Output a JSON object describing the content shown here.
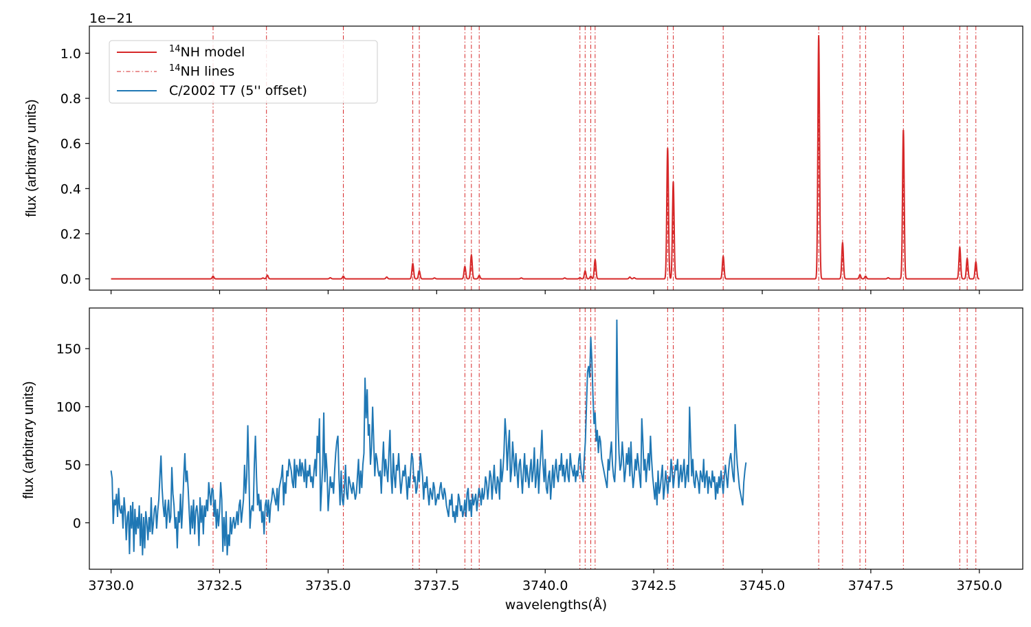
{
  "colors": {
    "model": "#d62728",
    "lines": "#d62728",
    "observed": "#1f77b4",
    "axes": "#000000"
  },
  "chart_data": [
    {
      "type": "line",
      "title": "",
      "xlabel": "",
      "ylabel": "flux (arbitrary units)",
      "offset_text": "1e−21",
      "xlim": [
        3729.5,
        3751.0
      ],
      "ylim": [
        -0.05,
        1.12
      ],
      "xticks": [
        3730.0,
        3732.5,
        3735.0,
        3737.5,
        3740.0,
        3742.5,
        3745.0,
        3747.5,
        3750.0
      ],
      "show_xtick_labels": false,
      "yticks": [
        0.0,
        0.2,
        0.4,
        0.6,
        0.8,
        1.0
      ],
      "ytick_labels": [
        "0.0",
        "0.2",
        "0.4",
        "0.6",
        "0.8",
        "1.0"
      ],
      "legend": {
        "placement": "upper-left",
        "entries": [
          {
            "sup": "14",
            "text": "NH model",
            "style": "solid",
            "color": "#d62728"
          },
          {
            "sup": "14",
            "text": "NH lines",
            "style": "dashdot",
            "color": "#d62728"
          },
          {
            "sup": "",
            "text": "C/2002 T7 (5'' offset)",
            "style": "solid",
            "color": "#1f77b4"
          }
        ]
      },
      "model_peaks": [
        {
          "x": 3732.35,
          "y": 0.012
        },
        {
          "x": 3733.5,
          "y": 0.004
        },
        {
          "x": 3733.6,
          "y": 0.016
        },
        {
          "x": 3735.05,
          "y": 0.005
        },
        {
          "x": 3735.35,
          "y": 0.012
        },
        {
          "x": 3736.35,
          "y": 0.008
        },
        {
          "x": 3736.95,
          "y": 0.068
        },
        {
          "x": 3737.1,
          "y": 0.035
        },
        {
          "x": 3737.45,
          "y": 0.004
        },
        {
          "x": 3738.15,
          "y": 0.055
        },
        {
          "x": 3738.3,
          "y": 0.105
        },
        {
          "x": 3738.48,
          "y": 0.015
        },
        {
          "x": 3739.45,
          "y": 0.004
        },
        {
          "x": 3740.45,
          "y": 0.004
        },
        {
          "x": 3740.8,
          "y": 0.005
        },
        {
          "x": 3740.92,
          "y": 0.035
        },
        {
          "x": 3741.05,
          "y": 0.012
        },
        {
          "x": 3741.15,
          "y": 0.085
        },
        {
          "x": 3741.95,
          "y": 0.008
        },
        {
          "x": 3742.05,
          "y": 0.005
        },
        {
          "x": 3742.82,
          "y": 0.58
        },
        {
          "x": 3742.95,
          "y": 0.43
        },
        {
          "x": 3744.1,
          "y": 0.1
        },
        {
          "x": 3746.3,
          "y": 1.08
        },
        {
          "x": 3746.85,
          "y": 0.16
        },
        {
          "x": 3747.25,
          "y": 0.018
        },
        {
          "x": 3747.38,
          "y": 0.012
        },
        {
          "x": 3747.9,
          "y": 0.005
        },
        {
          "x": 3748.25,
          "y": 0.66
        },
        {
          "x": 3749.55,
          "y": 0.14
        },
        {
          "x": 3749.72,
          "y": 0.09
        },
        {
          "x": 3749.92,
          "y": 0.075
        }
      ],
      "model_line_width": 0.045,
      "x_range": [
        3730.0,
        3750.0
      ]
    },
    {
      "type": "line",
      "title": "",
      "xlabel": "wavelengths(Å)",
      "ylabel": "flux (arbitrary units)",
      "xlim": [
        3729.5,
        3751.0
      ],
      "ylim": [
        -40,
        185
      ],
      "xticks": [
        3730.0,
        3732.5,
        3735.0,
        3737.5,
        3740.0,
        3742.5,
        3745.0,
        3747.5,
        3750.0
      ],
      "xtick_labels": [
        "3730.0",
        "3732.5",
        "3735.0",
        "3737.5",
        "3740.0",
        "3742.5",
        "3745.0",
        "3747.5",
        "3750.0"
      ],
      "yticks": [
        0,
        50,
        100,
        150
      ],
      "ytick_labels": [
        "0",
        "50",
        "100",
        "150"
      ],
      "series": [
        {
          "name": "C/2002 T7 (5'' offset)",
          "color": "#1f77b4",
          "x_start": 3730.0,
          "x_step": 0.025,
          "values": [
            45,
            38,
            -1,
            20,
            15,
            25,
            5,
            30,
            12,
            8,
            15,
            -5,
            22,
            10,
            -15,
            5,
            10,
            -27,
            15,
            -5,
            18,
            -25,
            12,
            -10,
            5,
            -5,
            15,
            -20,
            8,
            -28,
            5,
            -22,
            10,
            0,
            -15,
            5,
            -8,
            22,
            -10,
            0,
            12,
            15,
            -5,
            10,
            20,
            40,
            58,
            30,
            15,
            5,
            20,
            -5,
            10,
            20,
            0,
            5,
            48,
            25,
            15,
            -5,
            5,
            -22,
            10,
            0,
            25,
            -5,
            15,
            40,
            60,
            35,
            45,
            30,
            10,
            -10,
            15,
            -5,
            20,
            -10,
            10,
            15,
            5,
            -20,
            22,
            0,
            15,
            -10,
            15,
            5,
            20,
            10,
            35,
            25,
            15,
            30,
            28,
            5,
            20,
            -5,
            12,
            -3,
            10,
            35,
            20,
            -25,
            5,
            -20,
            10,
            -28,
            -10,
            -20,
            5,
            -10,
            0,
            5,
            -5,
            0,
            10,
            -2,
            15,
            20,
            0,
            10,
            20,
            50,
            25,
            40,
            84,
            45,
            -5,
            10,
            15,
            10,
            50,
            75,
            40,
            15,
            25,
            10,
            20,
            0,
            10,
            -10,
            15,
            20,
            5,
            20,
            0,
            15,
            20,
            30,
            25,
            20,
            15,
            30,
            10,
            30,
            35,
            40,
            50,
            15,
            35,
            25,
            45,
            40,
            55,
            50,
            45,
            35,
            30,
            55,
            30,
            50,
            45,
            40,
            55,
            40,
            52,
            45,
            35,
            55,
            30,
            45,
            40,
            50,
            35,
            40,
            30,
            45,
            55,
            40,
            75,
            60,
            90,
            10,
            30,
            50,
            95,
            35,
            60,
            45,
            10,
            25,
            40,
            30,
            35,
            25,
            45,
            60,
            70,
            75,
            40,
            15,
            45,
            20,
            15,
            30,
            50,
            25,
            20,
            40,
            35,
            30,
            25,
            35,
            28,
            20,
            25,
            40,
            55,
            25,
            45,
            30,
            50,
            60,
            125,
            90,
            115,
            75,
            85,
            50,
            65,
            100,
            70,
            40,
            60,
            55,
            45,
            40,
            45,
            25,
            50,
            70,
            40,
            55,
            45,
            35,
            60,
            80,
            40,
            25,
            60,
            40,
            30,
            50,
            45,
            60,
            40,
            25,
            35,
            45,
            40,
            50,
            35,
            20,
            40,
            30,
            45,
            60,
            55,
            35,
            40,
            25,
            30,
            45,
            35,
            60,
            50,
            40,
            20,
            35,
            30,
            40,
            25,
            15,
            30,
            25,
            20,
            35,
            30,
            15,
            20,
            25,
            20,
            30,
            35,
            25,
            20,
            30,
            25,
            15,
            10,
            5,
            20,
            15,
            25,
            5,
            10,
            0,
            15,
            5,
            25,
            20,
            10,
            15,
            5,
            10,
            20,
            5,
            25,
            30,
            10,
            20,
            5,
            25,
            15,
            20,
            25,
            10,
            20,
            30,
            25,
            15,
            30,
            20,
            25,
            40,
            35,
            20,
            30,
            45,
            40,
            20,
            35,
            50,
            30,
            25,
            40,
            35,
            20,
            55,
            35,
            45,
            60,
            90,
            75,
            45,
            65,
            80,
            35,
            45,
            70,
            55,
            40,
            60,
            45,
            30,
            50,
            55,
            40,
            25,
            45,
            60,
            35,
            50,
            40,
            30,
            45,
            55,
            35,
            45,
            65,
            30,
            40,
            55,
            25,
            45,
            60,
            80,
            50,
            35,
            55,
            30,
            25,
            40,
            45,
            20,
            35,
            50,
            30,
            45,
            55,
            40,
            35,
            50,
            45,
            60,
            40,
            50,
            35,
            45,
            55,
            40,
            35,
            60,
            50,
            45,
            40,
            50,
            35,
            45,
            40,
            55,
            60,
            45,
            40,
            35,
            55,
            70,
            100,
            130,
            135,
            125,
            160,
            140,
            110,
            85,
            95,
            70,
            80,
            60,
            75,
            70,
            55,
            50,
            45,
            40,
            35,
            30,
            55,
            45,
            60,
            70,
            50,
            40,
            35,
            55,
            175,
            90,
            60,
            45,
            50,
            70,
            55,
            35,
            45,
            60,
            50,
            65,
            40,
            70,
            45,
            30,
            40,
            55,
            45,
            60,
            50,
            40,
            30,
            90,
            70,
            45,
            55,
            35,
            50,
            60,
            45,
            75,
            55,
            40,
            30,
            20,
            35,
            15,
            45,
            25,
            30,
            40,
            50,
            20,
            30,
            45,
            35,
            25,
            40,
            35,
            55,
            45,
            30,
            40,
            50,
            45,
            55,
            30,
            40,
            50,
            35,
            45,
            55,
            30,
            40,
            50,
            35,
            100,
            70,
            40,
            55,
            35,
            30,
            45,
            40,
            35,
            25,
            45,
            40,
            35,
            55,
            30,
            40,
            45,
            25,
            40,
            35,
            30,
            45,
            35,
            40,
            20,
            35,
            25,
            40,
            30,
            45,
            35,
            25,
            40,
            50,
            40,
            30,
            45,
            55,
            60,
            50,
            40,
            35,
            85,
            65,
            50,
            40,
            30,
            25,
            20,
            15,
            35,
            45,
            52
          ]
        }
      ]
    }
  ],
  "nh_lines": [
    3732.35,
    3733.58,
    3735.35,
    3736.95,
    3737.1,
    3738.15,
    3738.3,
    3738.48,
    3740.8,
    3740.92,
    3741.05,
    3741.15,
    3742.82,
    3742.95,
    3744.1,
    3746.3,
    3746.85,
    3747.25,
    3747.38,
    3748.25,
    3749.55,
    3749.72,
    3749.92
  ]
}
